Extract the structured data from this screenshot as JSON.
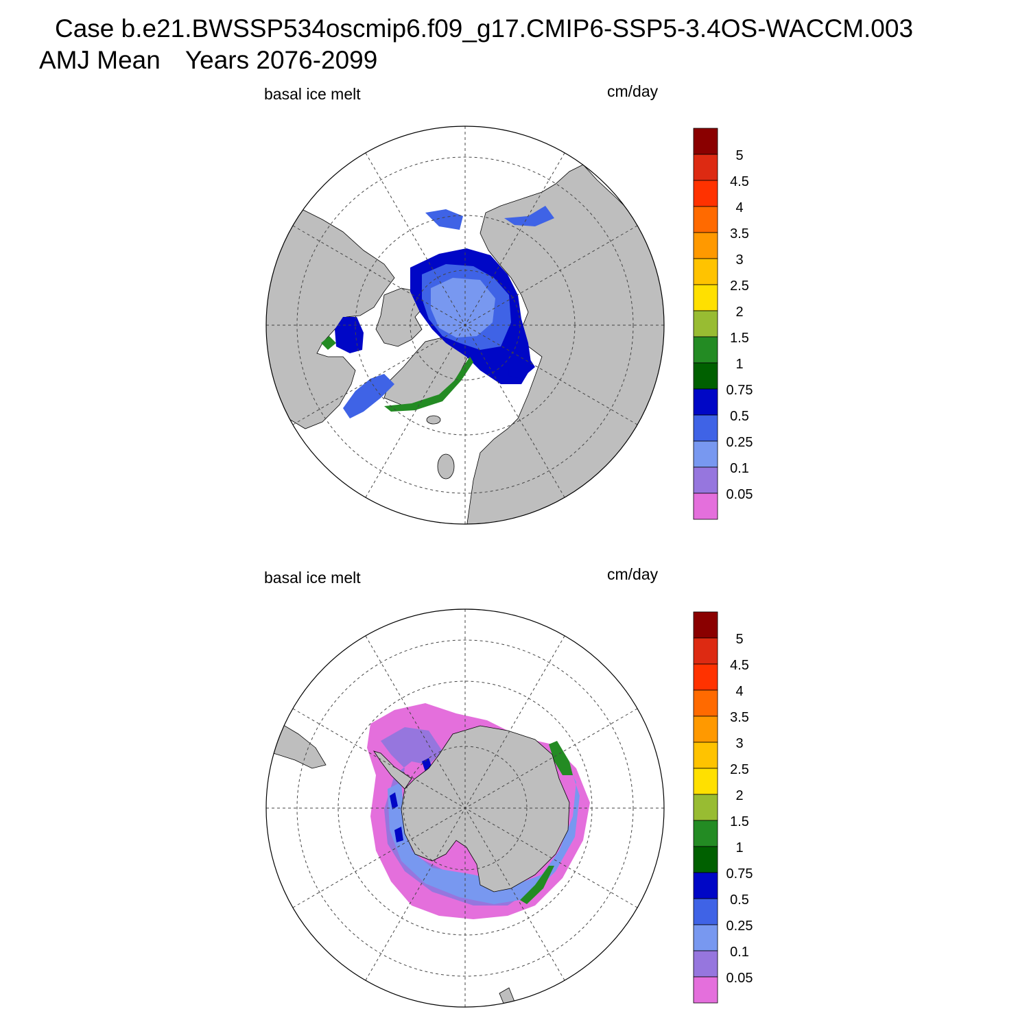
{
  "header": {
    "case_line": "Case b.e21.BWSSP534oscmip6.f09_g17.CMIP6-SSP5-3.4OS-WACCM.003",
    "season": "AMJ Mean",
    "years": "Years 2076-2099"
  },
  "panels": [
    {
      "hemisphere": "north",
      "variable": "basal ice melt",
      "units": "cm/day",
      "colorbar": {
        "levels": [
          "0.05",
          "0.1",
          "0.25",
          "0.5",
          "0.75",
          "1",
          "1.5",
          "2",
          "2.5",
          "3",
          "3.5",
          "4",
          "4.5",
          "5"
        ],
        "colors": [
          "#e46fdc",
          "#9676de",
          "#7898f0",
          "#3f63e6",
          "#0007c6",
          "#006000",
          "#238b23",
          "#98bc32",
          "#ffe000",
          "#ffc300",
          "#ff9900",
          "#ff6a00",
          "#ff3200",
          "#dd2a12",
          "#8a0000"
        ]
      }
    },
    {
      "hemisphere": "south",
      "variable": "basal ice melt",
      "units": "cm/day",
      "colorbar": {
        "levels": [
          "0.05",
          "0.1",
          "0.25",
          "0.5",
          "0.75",
          "1",
          "1.5",
          "2",
          "2.5",
          "3",
          "3.5",
          "4",
          "4.5",
          "5"
        ],
        "colors": [
          "#e46fdc",
          "#9676de",
          "#7898f0",
          "#3f63e6",
          "#0007c6",
          "#006000",
          "#238b23",
          "#98bc32",
          "#ffe000",
          "#ffc300",
          "#ff9900",
          "#ff6a00",
          "#ff3200",
          "#dd2a12",
          "#8a0000"
        ]
      }
    }
  ],
  "colors": {
    "land": "#bebebe",
    "ocean": "#ffffff",
    "outline": "#000000"
  }
}
